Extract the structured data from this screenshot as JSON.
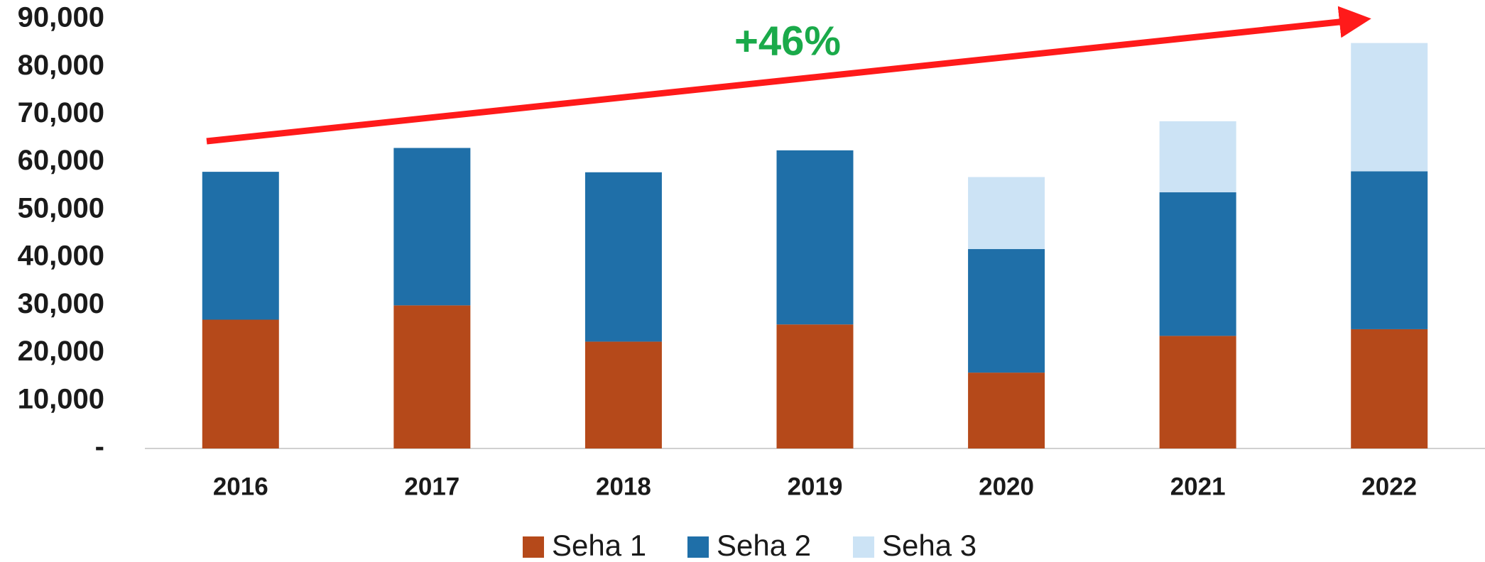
{
  "chart_data": {
    "type": "stacked_bar",
    "annotation": "+46%",
    "categories": [
      "2016",
      "2017",
      "2018",
      "2019",
      "2020",
      "2021",
      "2022"
    ],
    "series": [
      {
        "name": "Seha 1",
        "color": "#b5491a",
        "values": [
          27000,
          30000,
          22400,
          26000,
          15900,
          23600,
          25000
        ]
      },
      {
        "name": "Seha 2",
        "color": "#1f6fa8",
        "values": [
          31000,
          33000,
          35500,
          36500,
          25900,
          30100,
          33100
        ]
      },
      {
        "name": "Seha 3",
        "color": "#cce3f5",
        "values": [
          null,
          null,
          null,
          null,
          15100,
          14900,
          26900
        ]
      }
    ],
    "ylim": [
      0,
      90000
    ],
    "yticks": [
      {
        "value": 0,
        "label": "-"
      },
      {
        "value": 10000,
        "label": "10,000"
      },
      {
        "value": 20000,
        "label": "20,000"
      },
      {
        "value": 30000,
        "label": "30,000"
      },
      {
        "value": 40000,
        "label": "40,000"
      },
      {
        "value": 50000,
        "label": "50,000"
      },
      {
        "value": 60000,
        "label": "60,000"
      },
      {
        "value": 70000,
        "label": "70,000"
      },
      {
        "value": 80000,
        "label": "80,000"
      },
      {
        "value": 90000,
        "label": "90,000"
      }
    ],
    "grid": false,
    "legend": "bottom"
  }
}
